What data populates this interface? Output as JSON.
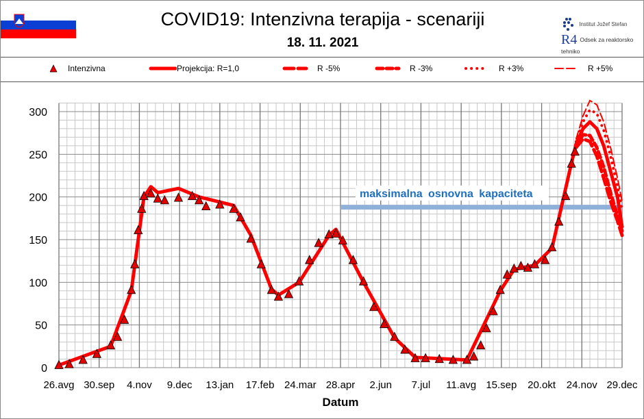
{
  "header": {
    "title": "COVID19: Intenzivna terapija - scenariji",
    "date": "18. 11. 2021",
    "logo_ijs": "Institut Jožef Stefan",
    "logo_r4": "Odsek za reaktorsko tehniko",
    "logo_r4_mark": "R4"
  },
  "chart_data": {
    "type": "line",
    "title": "COVID19: Intenzivna terapija - scenariji",
    "subtitle": "18. 11. 2021",
    "xlabel": "Datum",
    "ylabel": "",
    "ylim": [
      0,
      310
    ],
    "yticks": [
      0,
      50,
      100,
      150,
      200,
      250,
      300
    ],
    "xlim": [
      "2020-08-26",
      "2021-12-29"
    ],
    "xticks": [
      {
        "date": "2020-08-26",
        "label": "26.avg"
      },
      {
        "date": "2020-09-30",
        "label": "30.sep"
      },
      {
        "date": "2020-11-04",
        "label": "4.nov"
      },
      {
        "date": "2020-12-09",
        "label": "9.dec"
      },
      {
        "date": "2021-01-13",
        "label": "13.jan"
      },
      {
        "date": "2021-02-17",
        "label": "17.feb"
      },
      {
        "date": "2021-03-24",
        "label": "24.mar"
      },
      {
        "date": "2021-04-28",
        "label": "28.apr"
      },
      {
        "date": "2021-06-02",
        "label": "2.jun"
      },
      {
        "date": "2021-07-07",
        "label": "7.jul"
      },
      {
        "date": "2021-08-11",
        "label": "11.avg"
      },
      {
        "date": "2021-09-15",
        "label": "15.sep"
      },
      {
        "date": "2021-10-20",
        "label": "20.okt"
      },
      {
        "date": "2021-11-24",
        "label": "24.nov"
      },
      {
        "date": "2021-12-29",
        "label": "29.dec"
      }
    ],
    "grid": true,
    "legend_position": "top",
    "capacity": {
      "label": "maksimalna osnovna kapaciteta",
      "value": 188,
      "from": "2021-04-28",
      "color": "#8fb0d8",
      "label_color": "#1f6fc0"
    },
    "observed": {
      "name": "Intenzivna",
      "color": "#e00000",
      "points": [
        [
          "2020-08-26",
          2
        ],
        [
          "2020-09-04",
          3
        ],
        [
          "2020-09-16",
          8
        ],
        [
          "2020-09-28",
          15
        ],
        [
          "2020-10-10",
          25
        ],
        [
          "2020-10-16",
          35
        ],
        [
          "2020-10-22",
          55
        ],
        [
          "2020-10-28",
          90
        ],
        [
          "2020-10-31",
          120
        ],
        [
          "2020-11-03",
          160
        ],
        [
          "2020-11-06",
          185
        ],
        [
          "2020-11-08",
          200
        ],
        [
          "2020-11-14",
          203
        ],
        [
          "2020-11-20",
          197
        ],
        [
          "2020-11-26",
          195
        ],
        [
          "2020-12-08",
          198
        ],
        [
          "2020-12-20",
          200
        ],
        [
          "2020-12-26",
          195
        ],
        [
          "2021-01-01",
          188
        ],
        [
          "2021-01-13",
          190
        ],
        [
          "2021-01-25",
          185
        ],
        [
          "2021-01-31",
          175
        ],
        [
          "2021-02-09",
          150
        ],
        [
          "2021-02-18",
          120
        ],
        [
          "2021-02-27",
          90
        ],
        [
          "2021-03-05",
          82
        ],
        [
          "2021-03-14",
          85
        ],
        [
          "2021-03-23",
          100
        ],
        [
          "2021-04-01",
          125
        ],
        [
          "2021-04-09",
          145
        ],
        [
          "2021-04-18",
          155
        ],
        [
          "2021-04-24",
          156
        ],
        [
          "2021-04-30",
          148
        ],
        [
          "2021-05-09",
          125
        ],
        [
          "2021-05-18",
          100
        ],
        [
          "2021-05-27",
          70
        ],
        [
          "2021-06-05",
          50
        ],
        [
          "2021-06-14",
          35
        ],
        [
          "2021-06-23",
          20
        ],
        [
          "2021-07-02",
          10
        ],
        [
          "2021-07-11",
          10
        ],
        [
          "2021-07-23",
          9
        ],
        [
          "2021-08-04",
          8
        ],
        [
          "2021-08-16",
          8
        ],
        [
          "2021-08-22",
          12
        ],
        [
          "2021-08-28",
          25
        ],
        [
          "2021-09-02",
          45
        ],
        [
          "2021-09-08",
          65
        ],
        [
          "2021-09-14",
          90
        ],
        [
          "2021-09-20",
          108
        ],
        [
          "2021-09-26",
          115
        ],
        [
          "2021-10-02",
          118
        ],
        [
          "2021-10-08",
          116
        ],
        [
          "2021-10-14",
          120
        ],
        [
          "2021-10-23",
          125
        ],
        [
          "2021-10-29",
          140
        ],
        [
          "2021-11-04",
          170
        ],
        [
          "2021-11-10",
          200
        ],
        [
          "2021-11-15",
          238
        ],
        [
          "2021-11-18",
          252
        ]
      ]
    },
    "series": [
      {
        "name": "Projekcija: R=1,0",
        "style": "solid",
        "values": [
          [
            "2020-08-26",
            3
          ],
          [
            "2020-10-10",
            25
          ],
          [
            "2020-10-28",
            90
          ],
          [
            "2020-11-08",
            200
          ],
          [
            "2020-11-14",
            212
          ],
          [
            "2020-11-20",
            205
          ],
          [
            "2020-12-08",
            210
          ],
          [
            "2020-12-26",
            200
          ],
          [
            "2021-01-25",
            190
          ],
          [
            "2021-02-09",
            155
          ],
          [
            "2021-02-27",
            92
          ],
          [
            "2021-03-05",
            85
          ],
          [
            "2021-03-23",
            100
          ],
          [
            "2021-04-18",
            155
          ],
          [
            "2021-04-24",
            162
          ],
          [
            "2021-05-18",
            100
          ],
          [
            "2021-06-14",
            35
          ],
          [
            "2021-07-02",
            12
          ],
          [
            "2021-08-16",
            9
          ],
          [
            "2021-09-14",
            90
          ],
          [
            "2021-09-26",
            115
          ],
          [
            "2021-10-14",
            120
          ],
          [
            "2021-10-29",
            140
          ],
          [
            "2021-11-15",
            240
          ],
          [
            "2021-11-19",
            262
          ],
          [
            "2021-11-25",
            280
          ],
          [
            "2021-12-01",
            288
          ],
          [
            "2021-12-07",
            280
          ],
          [
            "2021-12-13",
            260
          ],
          [
            "2021-12-19",
            230
          ],
          [
            "2021-12-25",
            200
          ],
          [
            "2021-12-29",
            165
          ]
        ]
      },
      {
        "name": "R -5%",
        "style": "longdash",
        "values": [
          [
            "2021-11-19",
            258
          ],
          [
            "2021-11-25",
            268
          ],
          [
            "2021-12-01",
            265
          ],
          [
            "2021-12-07",
            248
          ],
          [
            "2021-12-13",
            222
          ],
          [
            "2021-12-19",
            195
          ],
          [
            "2021-12-25",
            172
          ],
          [
            "2021-12-29",
            155
          ]
        ]
      },
      {
        "name": "R -3%",
        "style": "dash",
        "values": [
          [
            "2021-11-19",
            260
          ],
          [
            "2021-11-25",
            273
          ],
          [
            "2021-12-01",
            272
          ],
          [
            "2021-12-07",
            258
          ],
          [
            "2021-12-13",
            235
          ],
          [
            "2021-12-19",
            205
          ],
          [
            "2021-12-25",
            178
          ],
          [
            "2021-12-29",
            160
          ]
        ]
      },
      {
        "name": "R +3%",
        "style": "dot",
        "values": [
          [
            "2021-11-19",
            265
          ],
          [
            "2021-11-25",
            288
          ],
          [
            "2021-12-01",
            302
          ],
          [
            "2021-12-07",
            298
          ],
          [
            "2021-12-13",
            278
          ],
          [
            "2021-12-19",
            248
          ],
          [
            "2021-12-25",
            212
          ],
          [
            "2021-12-29",
            185
          ]
        ]
      },
      {
        "name": "R +5%",
        "style": "outline",
        "values": [
          [
            "2021-11-19",
            268
          ],
          [
            "2021-11-25",
            295
          ],
          [
            "2021-12-01",
            313
          ],
          [
            "2021-12-07",
            308
          ],
          [
            "2021-12-13",
            288
          ],
          [
            "2021-12-19",
            258
          ],
          [
            "2021-12-25",
            222
          ],
          [
            "2021-12-29",
            195
          ]
        ]
      }
    ]
  }
}
